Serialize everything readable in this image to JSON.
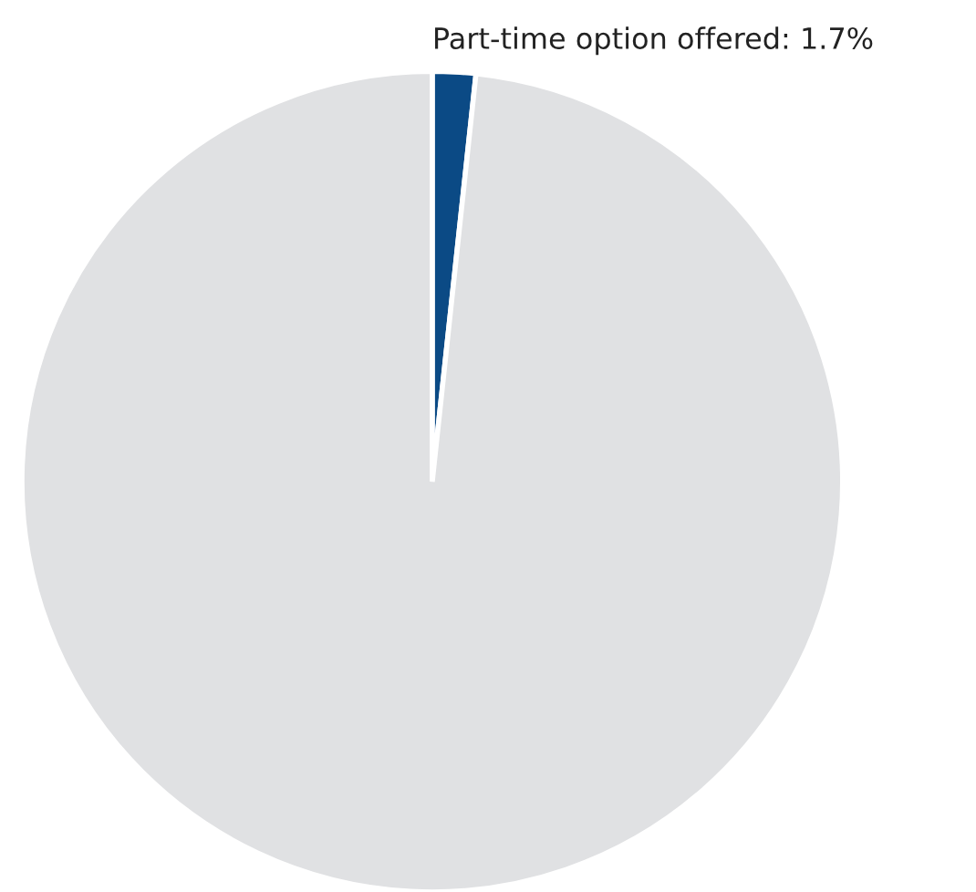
{
  "chart_data": {
    "type": "pie",
    "categories": [
      "Part-time option offered",
      null
    ],
    "values": [
      1.7,
      98.3
    ],
    "value_labels": [
      "1.7%",
      null
    ],
    "colors": [
      "#0b4a85",
      "#e0e1e3"
    ]
  }
}
